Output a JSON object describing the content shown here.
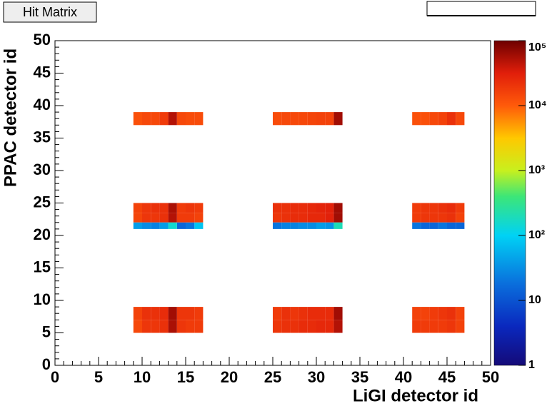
{
  "chart_data": {
    "type": "heatmap",
    "title": "Hit Matrix",
    "xlabel": "LiGI detector id",
    "ylabel": "PPAC detector id",
    "xlim": [
      0,
      50
    ],
    "ylim": [
      0,
      50
    ],
    "xticks": [
      0,
      5,
      10,
      15,
      20,
      25,
      30,
      35,
      40,
      45,
      50
    ],
    "yticks": [
      0,
      5,
      10,
      15,
      20,
      25,
      30,
      35,
      40,
      45,
      50
    ],
    "zlim": [
      1,
      100000
    ],
    "zlog": true,
    "zticks": [
      1,
      10,
      {
        "value": 100,
        "label": "10²"
      },
      {
        "value": 1000,
        "label": "10³"
      },
      {
        "value": 10000,
        "label": "10⁴"
      },
      {
        "value": 100000,
        "label": "10⁵"
      }
    ],
    "xbins": [
      9,
      10,
      11,
      12,
      13,
      14,
      15,
      16,
      17,
      18,
      19,
      20,
      21,
      22,
      23,
      24,
      25,
      26,
      27,
      28,
      29,
      30,
      31,
      32,
      33,
      34,
      35,
      36,
      37,
      38,
      39,
      40,
      41,
      42,
      43,
      44,
      45,
      46,
      47
    ],
    "rows": [
      {
        "y": [
          5,
          7
        ],
        "z": [
          14000,
          20000,
          20000,
          22000,
          55000,
          20000,
          18000,
          18000,
          null,
          null,
          null,
          null,
          null,
          null,
          null,
          null,
          20000,
          22000,
          22000,
          24000,
          24000,
          26000,
          26000,
          50000,
          null,
          null,
          null,
          null,
          null,
          null,
          null,
          null,
          18000,
          18000,
          18000,
          18000,
          20000,
          16000
        ]
      },
      {
        "y": [
          7,
          9
        ],
        "z": [
          16000,
          22000,
          22000,
          24000,
          60000,
          20000,
          20000,
          18000,
          null,
          null,
          null,
          null,
          null,
          null,
          null,
          null,
          18000,
          22000,
          20000,
          22000,
          24000,
          24000,
          24000,
          60000,
          null,
          null,
          null,
          null,
          null,
          null,
          null,
          null,
          16000,
          16000,
          18000,
          20000,
          22000,
          16000
        ]
      },
      {
        "y": [
          21,
          22
        ],
        "z": [
          40,
          30,
          25,
          40,
          150,
          15,
          20,
          80,
          null,
          null,
          null,
          null,
          null,
          null,
          null,
          null,
          20,
          25,
          25,
          30,
          30,
          40,
          35,
          200,
          null,
          null,
          null,
          null,
          null,
          null,
          null,
          null,
          20,
          15,
          15,
          20,
          15,
          15
        ]
      },
      {
        "y": [
          22,
          23.5
        ],
        "z": [
          15000,
          20000,
          20000,
          22000,
          50000,
          18000,
          18000,
          16000,
          null,
          null,
          null,
          null,
          null,
          null,
          null,
          null,
          20000,
          22000,
          24000,
          24000,
          26000,
          26000,
          30000,
          60000,
          null,
          null,
          null,
          null,
          null,
          null,
          null,
          null,
          18000,
          20000,
          20000,
          20000,
          22000,
          16000
        ]
      },
      {
        "y": [
          23.5,
          25
        ],
        "z": [
          16000,
          20000,
          22000,
          22000,
          55000,
          18000,
          20000,
          18000,
          null,
          null,
          null,
          null,
          null,
          null,
          null,
          null,
          22000,
          22000,
          24000,
          24000,
          26000,
          28000,
          30000,
          60000,
          null,
          null,
          null,
          null,
          null,
          null,
          null,
          null,
          18000,
          20000,
          20000,
          22000,
          24000,
          18000
        ]
      },
      {
        "y": [
          37,
          39
        ],
        "z": [
          12000,
          14000,
          14000,
          18000,
          50000,
          14000,
          13000,
          13000,
          null,
          null,
          null,
          null,
          null,
          null,
          null,
          null,
          13000,
          14000,
          14000,
          14000,
          15000,
          16000,
          16000,
          60000,
          null,
          null,
          null,
          null,
          null,
          null,
          null,
          null,
          12000,
          12000,
          14000,
          16000,
          22000,
          14000
        ]
      }
    ]
  }
}
